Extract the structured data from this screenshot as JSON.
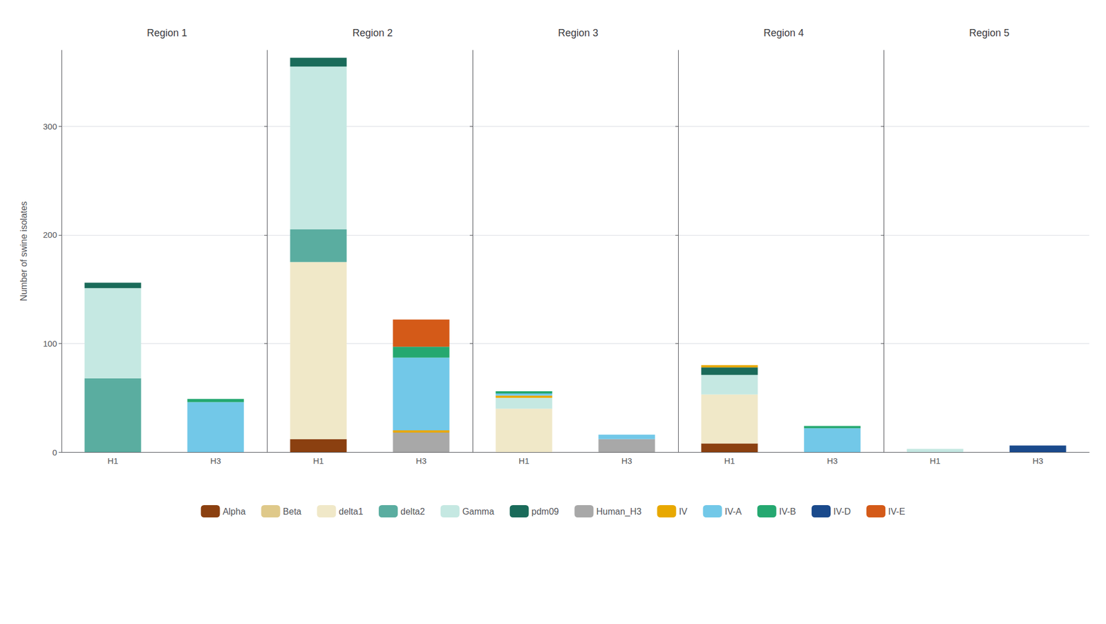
{
  "chart_data": [
    {
      "type": "bar",
      "title": "Region 1",
      "ylabel": "Number of swine isolates",
      "categories": [
        "H1",
        "H3"
      ],
      "series": [
        {
          "name": "Alpha",
          "color": "#8B4010",
          "values": [
            0,
            0
          ]
        },
        {
          "name": "Beta",
          "color": "#DFC98A",
          "values": [
            0,
            0
          ]
        },
        {
          "name": "delta1",
          "color": "#F0E8C8",
          "values": [
            0,
            0
          ]
        },
        {
          "name": "delta2",
          "color": "#5AADA0",
          "values": [
            68,
            0
          ]
        },
        {
          "name": "Gamma",
          "color": "#C5E8E2",
          "values": [
            83,
            0
          ]
        },
        {
          "name": "pdm09",
          "color": "#1A6B5A",
          "values": [
            5,
            0
          ]
        },
        {
          "name": "Human_H3",
          "color": "#A8A8A8",
          "values": [
            0,
            0
          ]
        },
        {
          "name": "IV",
          "color": "#E8A800",
          "values": [
            0,
            0
          ]
        },
        {
          "name": "IV-A",
          "color": "#72C8E8",
          "values": [
            0,
            46
          ]
        },
        {
          "name": "IV-B",
          "color": "#25A870",
          "values": [
            0,
            3
          ]
        },
        {
          "name": "IV-D",
          "color": "#1A4A8C",
          "values": [
            0,
            0
          ]
        },
        {
          "name": "IV-E",
          "color": "#D45A18",
          "values": [
            0,
            0
          ]
        }
      ],
      "ylim": [
        0,
        370
      ],
      "yticks": [
        0,
        100,
        200,
        300
      ],
      "grid": true,
      "stacked": true,
      "legend": "bottom"
    },
    {
      "type": "bar",
      "title": "Region 2",
      "categories": [
        "H1",
        "H3"
      ],
      "series": [
        {
          "name": "Alpha",
          "color": "#8B4010",
          "values": [
            12,
            0
          ]
        },
        {
          "name": "Beta",
          "color": "#DFC98A",
          "values": [
            0,
            0
          ]
        },
        {
          "name": "delta1",
          "color": "#F0E8C8",
          "values": [
            163,
            0
          ]
        },
        {
          "name": "delta2",
          "color": "#5AADA0",
          "values": [
            30,
            0
          ]
        },
        {
          "name": "Gamma",
          "color": "#C5E8E2",
          "values": [
            150,
            0
          ]
        },
        {
          "name": "pdm09",
          "color": "#1A6B5A",
          "values": [
            8,
            0
          ]
        },
        {
          "name": "Human_H3",
          "color": "#A8A8A8",
          "values": [
            0,
            18
          ]
        },
        {
          "name": "IV",
          "color": "#E8A800",
          "values": [
            0,
            2
          ]
        },
        {
          "name": "IV-A",
          "color": "#72C8E8",
          "values": [
            0,
            67
          ]
        },
        {
          "name": "IV-B",
          "color": "#25A870",
          "values": [
            0,
            10
          ]
        },
        {
          "name": "IV-D",
          "color": "#1A4A8C",
          "values": [
            0,
            0
          ]
        },
        {
          "name": "IV-E",
          "color": "#D45A18",
          "values": [
            0,
            25
          ]
        }
      ],
      "ylim": [
        0,
        370
      ],
      "yticks": [
        0,
        100,
        200,
        300
      ],
      "grid": true,
      "stacked": true,
      "tick_labels": "x"
    },
    {
      "type": "bar",
      "title": "Region 3",
      "categories": [
        "H1",
        "H3"
      ],
      "series": [
        {
          "name": "Alpha",
          "color": "#8B4010",
          "values": [
            0,
            0
          ]
        },
        {
          "name": "Beta",
          "color": "#DFC98A",
          "values": [
            0,
            0
          ]
        },
        {
          "name": "delta1",
          "color": "#F0E8C8",
          "values": [
            40,
            0
          ]
        },
        {
          "name": "delta2",
          "color": "#5AADA0",
          "values": [
            0,
            0
          ]
        },
        {
          "name": "Gamma",
          "color": "#C5E8E2",
          "values": [
            10,
            0
          ]
        },
        {
          "name": "pdm09",
          "color": "#1A6B5A",
          "values": [
            0,
            0
          ]
        },
        {
          "name": "Human_H3",
          "color": "#A8A8A8",
          "values": [
            0,
            12
          ]
        },
        {
          "name": "IV",
          "color": "#E8A800",
          "values": [
            2,
            0
          ]
        },
        {
          "name": "IV-A",
          "color": "#72C8E8",
          "values": [
            2,
            4
          ]
        },
        {
          "name": "IV-B",
          "color": "#25A870",
          "values": [
            2,
            0
          ]
        },
        {
          "name": "IV-D",
          "color": "#1A4A8C",
          "values": [
            0,
            0
          ]
        },
        {
          "name": "IV-E",
          "color": "#D45A18",
          "values": [
            0,
            0
          ]
        }
      ],
      "ylim": [
        0,
        370
      ],
      "yticks": [
        0,
        100,
        200,
        300
      ],
      "grid": true,
      "stacked": true,
      "tick_labels": "x"
    },
    {
      "type": "bar",
      "title": "Region 4",
      "categories": [
        "H1",
        "H3"
      ],
      "series": [
        {
          "name": "Alpha",
          "color": "#8B4010",
          "values": [
            8,
            0
          ]
        },
        {
          "name": "Beta",
          "color": "#DFC98A",
          "values": [
            0,
            0
          ]
        },
        {
          "name": "delta1",
          "color": "#F0E8C8",
          "values": [
            45,
            0
          ]
        },
        {
          "name": "delta2",
          "color": "#5AADA0",
          "values": [
            0,
            0
          ]
        },
        {
          "name": "Gamma",
          "color": "#C5E8E2",
          "values": [
            18,
            0
          ]
        },
        {
          "name": "pdm09",
          "color": "#1A6B5A",
          "values": [
            7,
            0
          ]
        },
        {
          "name": "Human_H3",
          "color": "#A8A8A8",
          "values": [
            0,
            0
          ]
        },
        {
          "name": "IV",
          "color": "#E8A800",
          "values": [
            2,
            0
          ]
        },
        {
          "name": "IV-A",
          "color": "#72C8E8",
          "values": [
            0,
            22
          ]
        },
        {
          "name": "IV-B",
          "color": "#25A870",
          "values": [
            0,
            2
          ]
        },
        {
          "name": "IV-D",
          "color": "#1A4A8C",
          "values": [
            0,
            0
          ]
        },
        {
          "name": "IV-E",
          "color": "#D45A18",
          "values": [
            0,
            0
          ]
        }
      ],
      "ylim": [
        0,
        370
      ],
      "yticks": [
        0,
        100,
        200,
        300
      ],
      "grid": true,
      "stacked": true,
      "tick_labels": "x"
    },
    {
      "type": "bar",
      "title": "Region 5",
      "categories": [
        "H1",
        "H3"
      ],
      "series": [
        {
          "name": "Alpha",
          "color": "#8B4010",
          "values": [
            0,
            0
          ]
        },
        {
          "name": "Beta",
          "color": "#DFC98A",
          "values": [
            0,
            0
          ]
        },
        {
          "name": "delta1",
          "color": "#F0E8C8",
          "values": [
            0,
            0
          ]
        },
        {
          "name": "delta2",
          "color": "#5AADA0",
          "values": [
            0,
            0
          ]
        },
        {
          "name": "Gamma",
          "color": "#C5E8E2",
          "values": [
            3,
            0
          ]
        },
        {
          "name": "pdm09",
          "color": "#1A6B5A",
          "values": [
            0,
            0
          ]
        },
        {
          "name": "Human_H3",
          "color": "#A8A8A8",
          "values": [
            0,
            0
          ]
        },
        {
          "name": "IV",
          "color": "#E8A800",
          "values": [
            0,
            0
          ]
        },
        {
          "name": "IV-A",
          "color": "#72C8E8",
          "values": [
            0,
            0
          ]
        },
        {
          "name": "IV-B",
          "color": "#25A870",
          "values": [
            0,
            0
          ]
        },
        {
          "name": "IV-D",
          "color": "#1A4A8C",
          "values": [
            0,
            6
          ]
        },
        {
          "name": "IV-E",
          "color": "#D45A18",
          "values": [
            0,
            0
          ]
        }
      ],
      "ylim": [
        0,
        370
      ],
      "yticks": [
        0,
        100,
        200,
        300
      ],
      "grid": true,
      "stacked": true,
      "tick_labels": "x"
    }
  ]
}
